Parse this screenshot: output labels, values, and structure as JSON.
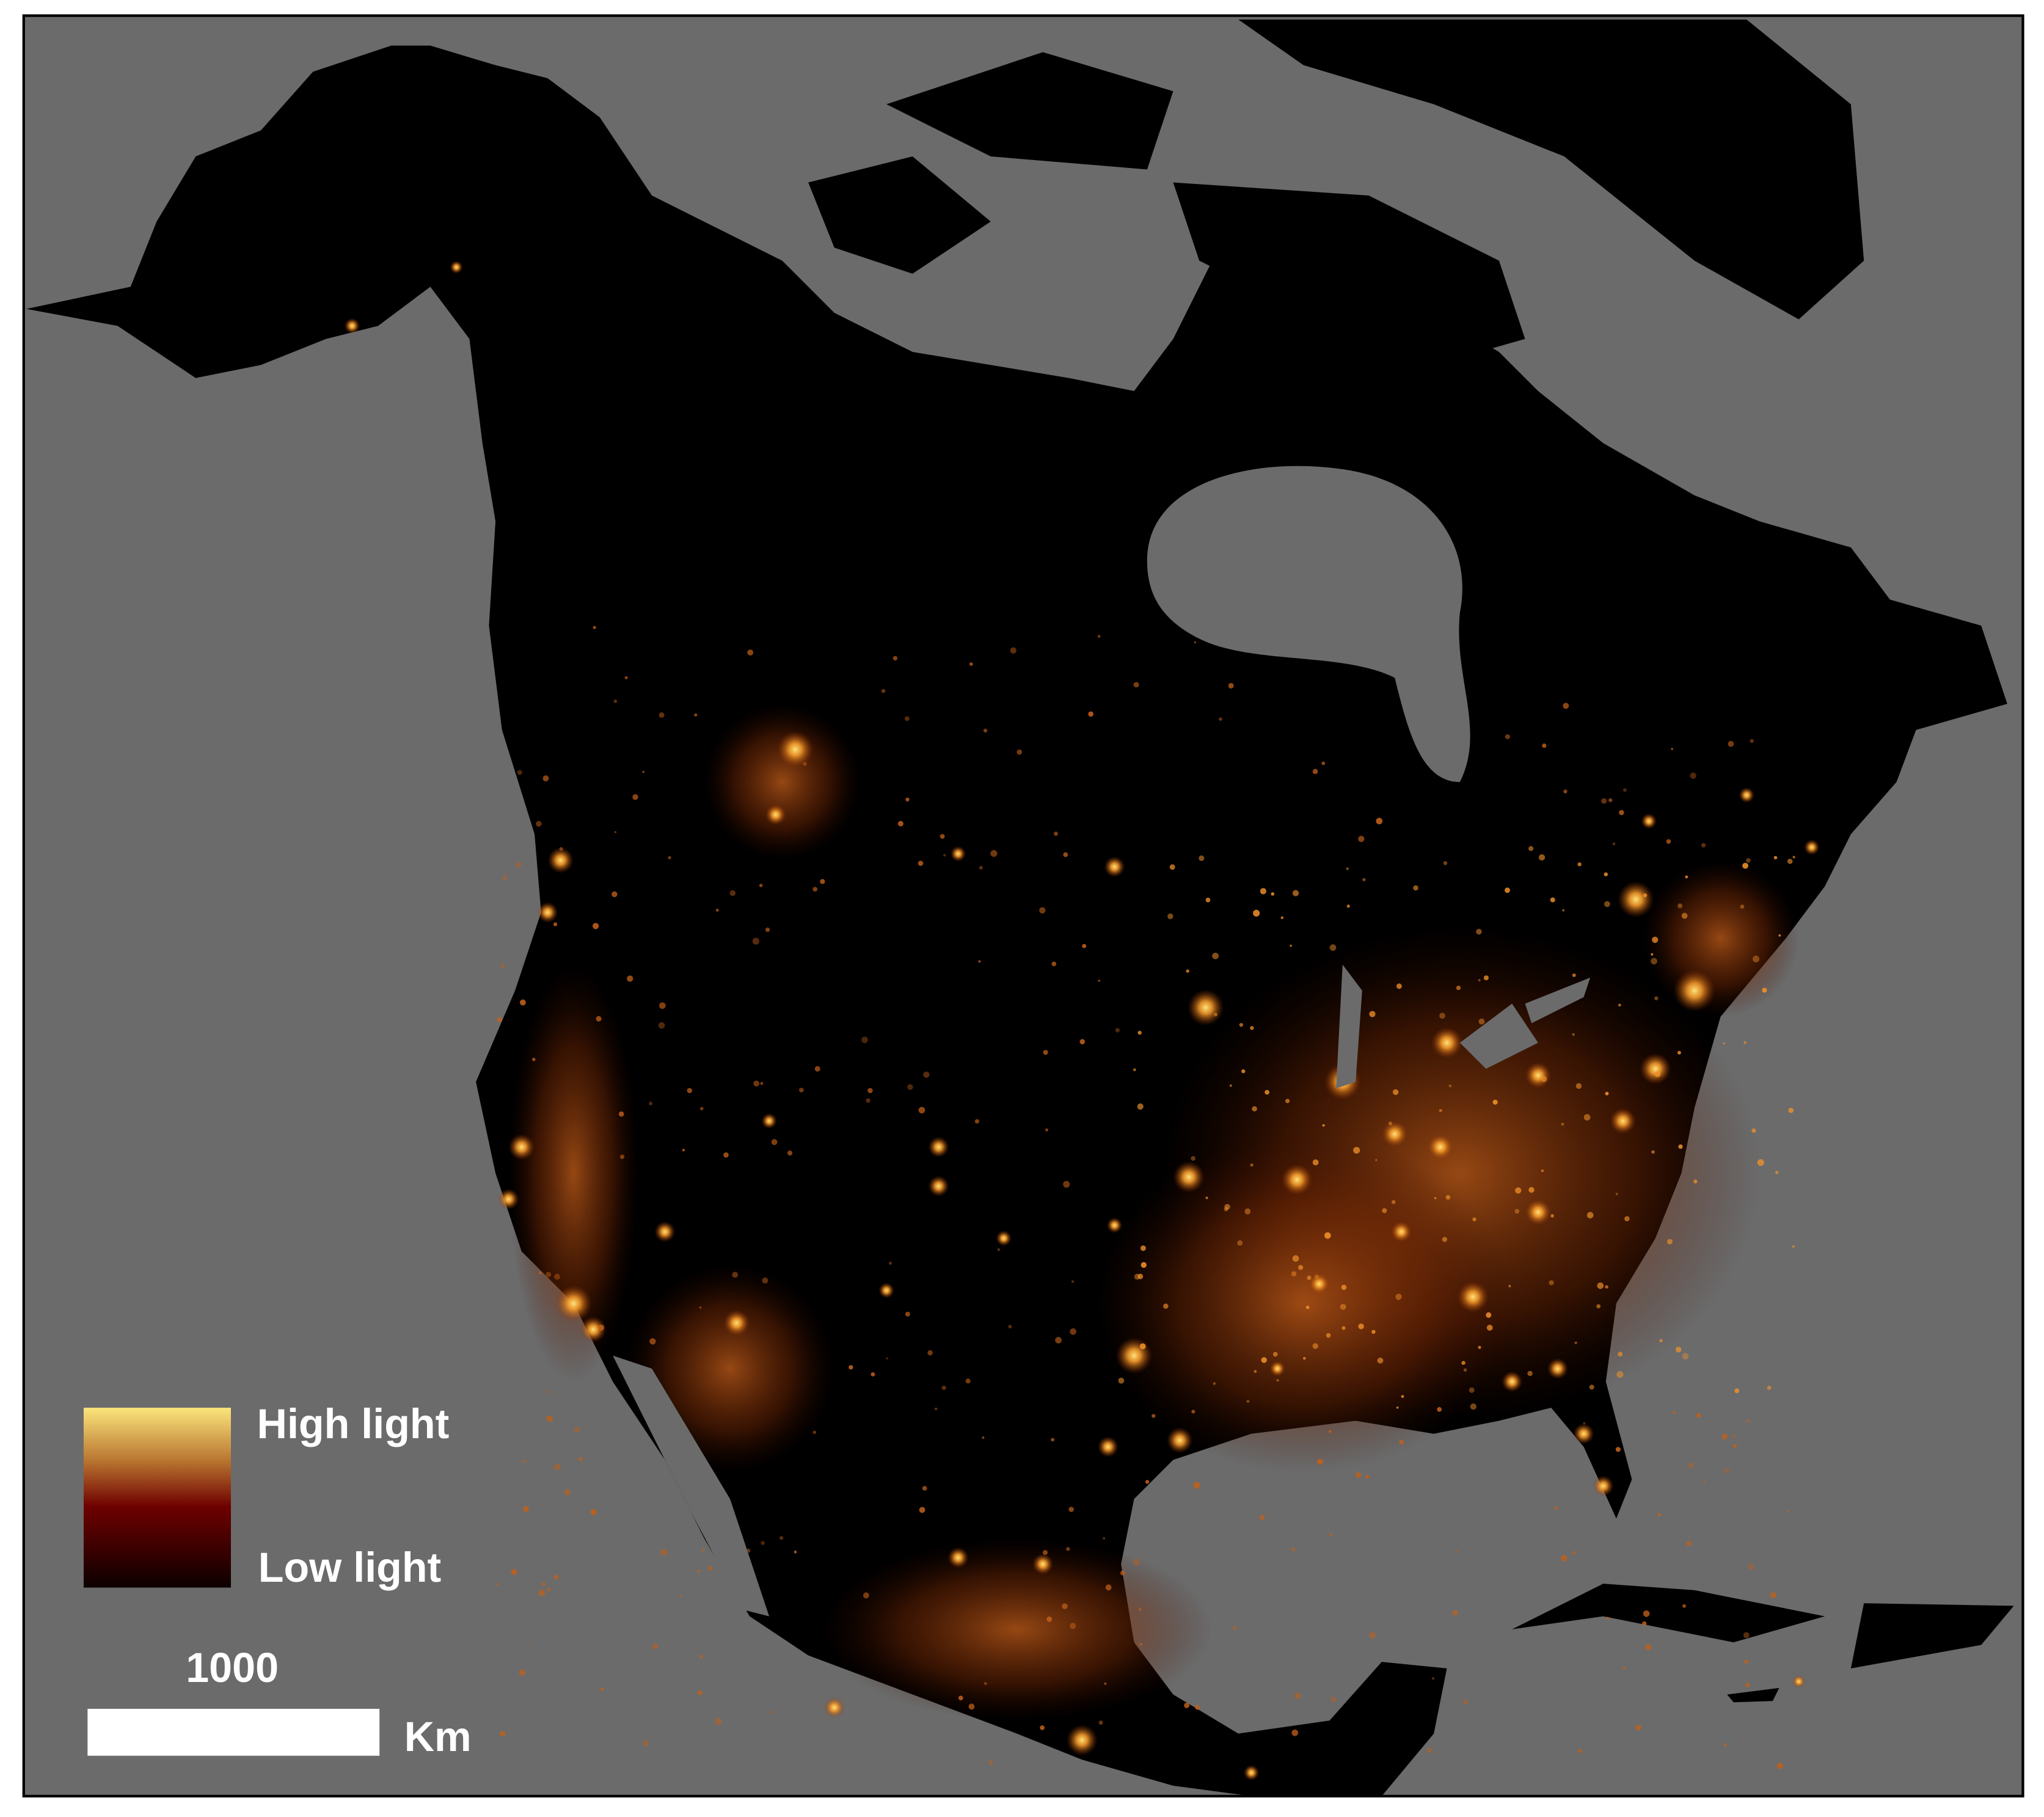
{
  "legend": {
    "high": "High light",
    "low": "Low light"
  },
  "scale_bar": {
    "distance": 1000,
    "unit": "Km"
  }
}
